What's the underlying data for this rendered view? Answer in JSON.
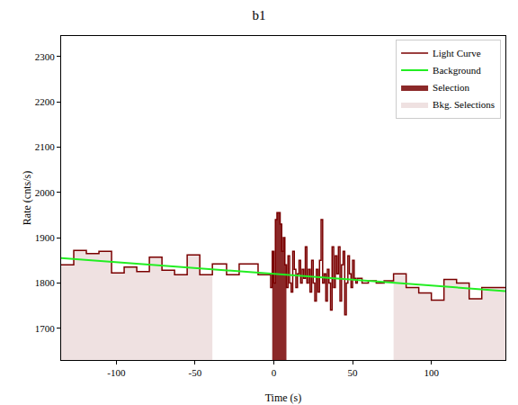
{
  "chart_data": {
    "type": "line",
    "title": "b1",
    "x_label": "Time (s)",
    "y_label": "Rate (cnts/s)",
    "xlim": [
      -135,
      147
    ],
    "ylim": [
      1630,
      2345
    ],
    "xticks": [
      -100,
      -50,
      0,
      50,
      100
    ],
    "yticks": [
      1700,
      1800,
      1900,
      2000,
      2100,
      2200,
      2300
    ],
    "grid": false,
    "legend": "upper right",
    "series": [
      {
        "name": "Light Curve",
        "type": "line",
        "line_style": "step",
        "color": "#7a0000",
        "x": [
          -135,
          -127,
          -119,
          -111,
          -103,
          -95,
          -87,
          -79,
          -71,
          -63,
          -55,
          -47,
          -39,
          -30,
          -22,
          -10,
          -2,
          -1,
          0,
          1,
          2,
          3,
          4,
          5,
          6,
          7,
          8,
          9,
          10,
          11,
          12,
          13,
          14,
          15,
          16,
          17,
          18,
          19,
          20,
          21,
          22,
          23,
          24,
          25,
          26,
          27,
          28,
          29,
          30,
          31,
          32,
          33,
          34,
          35,
          36,
          37,
          38,
          39,
          40,
          41,
          42,
          43,
          44,
          45,
          46,
          47,
          48,
          49,
          50,
          51,
          52,
          53,
          56,
          60,
          65,
          70,
          76,
          84,
          92,
          100,
          108,
          116,
          124,
          132,
          147
        ],
        "values": [
          1840,
          1872,
          1865,
          1870,
          1822,
          1835,
          1825,
          1857,
          1828,
          1818,
          1862,
          1818,
          1842,
          1818,
          1842,
          1818,
          1790,
          1870,
          1800,
          1940,
          1955,
          1955,
          1930,
          1870,
          1900,
          1840,
          1790,
          1860,
          1800,
          1780,
          1870,
          1830,
          1790,
          1820,
          1850,
          1800,
          1830,
          1810,
          1880,
          1800,
          1830,
          1780,
          1850,
          1800,
          1760,
          1830,
          1780,
          1850,
          1940,
          1800,
          1820,
          1760,
          1830,
          1800,
          1740,
          1880,
          1790,
          1860,
          1820,
          1880,
          1760,
          1840,
          1870,
          1730,
          1800,
          1860,
          1820,
          1790,
          1850,
          1810,
          1800,
          1810,
          1800,
          1805,
          1800,
          1805,
          1820,
          1790,
          1778,
          1762,
          1808,
          1800,
          1765,
          1790,
          1790
        ]
      },
      {
        "name": "Background",
        "type": "line",
        "line_style": "solid",
        "color": "#22ee22",
        "x": [
          -135,
          147
        ],
        "values": [
          1855,
          1782
        ]
      },
      {
        "name": "Selection",
        "type": "area",
        "line_style": "step",
        "color": "#8b2828",
        "x": [
          -1,
          0,
          1,
          2,
          3,
          4,
          5,
          6,
          7,
          8
        ],
        "values": [
          1870,
          1800,
          1940,
          1955,
          1955,
          1930,
          1870,
          1900,
          1840,
          1840
        ]
      },
      {
        "name": "Bkg. Selections",
        "type": "area",
        "line_style": "step",
        "color": "#efe1e1",
        "x": [
          -135,
          -127,
          -119,
          -111,
          -103,
          -95,
          -87,
          -79,
          -71,
          -63,
          -55,
          -47,
          -39,
          null,
          76,
          84,
          92,
          100,
          108,
          116,
          124,
          132,
          147
        ],
        "values": [
          1840,
          1872,
          1865,
          1870,
          1822,
          1835,
          1825,
          1857,
          1828,
          1818,
          1862,
          1818,
          1818,
          null,
          1820,
          1790,
          1778,
          1762,
          1808,
          1800,
          1765,
          1790,
          1790
        ]
      }
    ]
  }
}
